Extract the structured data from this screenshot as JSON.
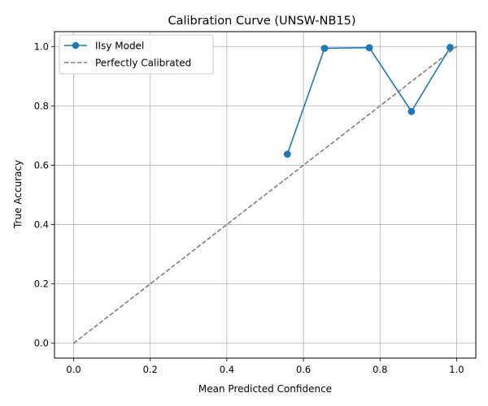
{
  "chart_data": {
    "type": "line",
    "title": "Calibration Curve (UNSW-NB15)",
    "xlabel": "Mean Predicted Confidence",
    "ylabel": "True Accuracy",
    "xlim": [
      -0.05,
      1.05
    ],
    "ylim": [
      -0.05,
      1.05
    ],
    "x_ticks": [
      0.0,
      0.2,
      0.4,
      0.6,
      0.8,
      1.0
    ],
    "y_ticks": [
      0.0,
      0.2,
      0.4,
      0.6,
      0.8,
      1.0
    ],
    "grid": true,
    "legend_position": "top-left",
    "series": [
      {
        "name": "IIsy Model",
        "x": [
          0.558,
          0.655,
          0.772,
          0.882,
          0.983
        ],
        "y": [
          0.637,
          0.994,
          0.996,
          0.781,
          0.997
        ],
        "color": "#1f77b4",
        "line_style": "solid",
        "marker": "circle"
      },
      {
        "name": "Perfectly Calibrated",
        "x": [
          0.0,
          1.0
        ],
        "y": [
          0.0,
          1.0
        ],
        "color": "#7f7f7f",
        "line_style": "dashed",
        "marker": "none"
      }
    ]
  }
}
